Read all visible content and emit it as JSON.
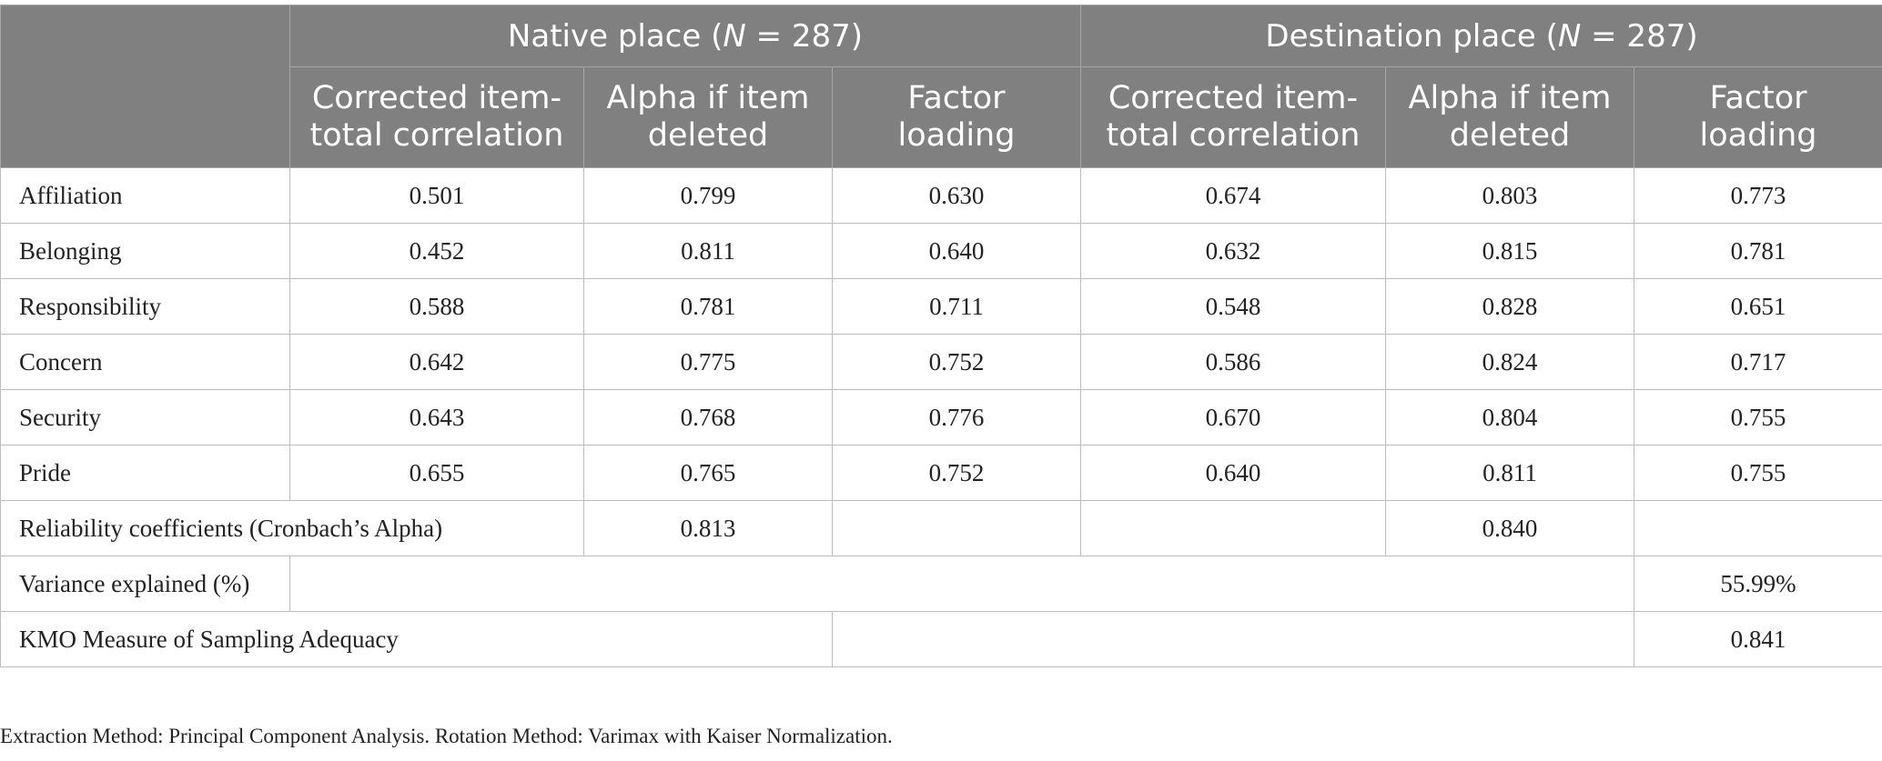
{
  "table": {
    "group_headers": [
      {
        "label": "Native place (",
        "n_symbol": "N",
        "n_rest": " = 287)"
      },
      {
        "label": "Destination place (",
        "n_symbol": "N",
        "n_rest": " = 287)"
      }
    ],
    "sub_headers": [
      [
        "Corrected item-",
        "total correlation"
      ],
      [
        "Alpha if item",
        "deleted"
      ],
      [
        "Factor",
        "loading"
      ],
      [
        "Corrected item-",
        "total correlation"
      ],
      [
        "Alpha if item",
        "deleted"
      ],
      [
        "Factor",
        "loading"
      ]
    ],
    "rows": [
      {
        "label": "Affiliation",
        "values": [
          "0.501",
          "0.799",
          "0.630",
          "0.674",
          "0.803",
          "0.773"
        ]
      },
      {
        "label": "Belonging",
        "values": [
          "0.452",
          "0.811",
          "0.640",
          "0.632",
          "0.815",
          "0.781"
        ]
      },
      {
        "label": "Responsibility",
        "values": [
          "0.588",
          "0.781",
          "0.711",
          "0.548",
          "0.828",
          "0.651"
        ]
      },
      {
        "label": "Concern",
        "values": [
          "0.642",
          "0.775",
          "0.752",
          "0.586",
          "0.824",
          "0.717"
        ]
      },
      {
        "label": "Security",
        "values": [
          "0.643",
          "0.768",
          "0.776",
          "0.670",
          "0.804",
          "0.755"
        ]
      },
      {
        "label": "Pride",
        "values": [
          "0.655",
          "0.765",
          "0.752",
          "0.640",
          "0.811",
          "0.755"
        ]
      }
    ],
    "reliability": {
      "label": "Reliability coefficients (Cronbach’s Alpha)",
      "native": "0.813",
      "destination": "0.840"
    },
    "variance": {
      "label": "Variance explained (%)",
      "value": "55.99%"
    },
    "kmo": {
      "label": "KMO Measure of Sampling Adequacy",
      "value": "0.841"
    }
  },
  "footnote": "Extraction Method: Principal Component Analysis. Rotation Method: Varimax with Kaiser Normalization."
}
